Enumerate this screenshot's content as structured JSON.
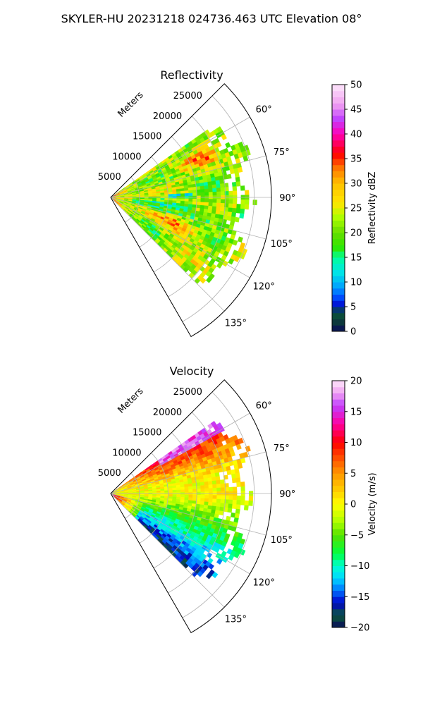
{
  "figure_title": "SKYLER-HU  20231218  024736.463 UTC Elevation 08°",
  "chart_data": [
    {
      "type": "heatmap",
      "title": "Reflectivity",
      "projection": "polar sector",
      "range_label": "Meters",
      "range_ticks": [
        "5000",
        "10000",
        "15000",
        "20000",
        "25000"
      ],
      "range_tick_values": [
        5000,
        10000,
        15000,
        20000,
        25000
      ],
      "range_max": 28000,
      "azimuth_min": 45,
      "azimuth_max": 150,
      "azimuth_ticks": [
        "60°",
        "75°",
        "90°",
        "105°",
        "120°",
        "135°"
      ],
      "azimuth_tick_values": [
        60,
        75,
        90,
        105,
        120,
        135
      ],
      "grid": true,
      "colorbar": {
        "label": "Reflectivity dBZ",
        "range": [
          0,
          50
        ],
        "ticks": [
          "0",
          "5",
          "10",
          "15",
          "20",
          "25",
          "30",
          "35",
          "40",
          "45",
          "50"
        ],
        "tick_values": [
          0,
          5,
          10,
          15,
          20,
          25,
          30,
          35,
          40,
          45,
          50
        ]
      },
      "colormap": [
        {
          "v": 0,
          "c": "#0a0a5a"
        },
        {
          "v": 2,
          "c": "#0d3b3b"
        },
        {
          "v": 4,
          "c": "#0a5a3a"
        },
        {
          "v": 5,
          "c": "#0000c8"
        },
        {
          "v": 7,
          "c": "#0050ff"
        },
        {
          "v": 9,
          "c": "#00a0ff"
        },
        {
          "v": 12,
          "c": "#00e6e6"
        },
        {
          "v": 15,
          "c": "#00ff9a"
        },
        {
          "v": 17,
          "c": "#2ee600"
        },
        {
          "v": 20,
          "c": "#66dd00"
        },
        {
          "v": 23,
          "c": "#aaff00"
        },
        {
          "v": 26,
          "c": "#ffe600"
        },
        {
          "v": 30,
          "c": "#ffc000"
        },
        {
          "v": 33,
          "c": "#ff7a00"
        },
        {
          "v": 36,
          "c": "#ff0000"
        },
        {
          "v": 40,
          "c": "#ff00b4"
        },
        {
          "v": 43,
          "c": "#c040ff"
        },
        {
          "v": 46,
          "c": "#f0a0f0"
        },
        {
          "v": 50,
          "c": "#fde6fb"
        }
      ]
    },
    {
      "type": "heatmap",
      "title": "Velocity",
      "projection": "polar sector",
      "range_label": "Meters",
      "range_ticks": [
        "5000",
        "10000",
        "15000",
        "20000",
        "25000"
      ],
      "range_tick_values": [
        5000,
        10000,
        15000,
        20000,
        25000
      ],
      "range_max": 28000,
      "azimuth_min": 45,
      "azimuth_max": 150,
      "azimuth_ticks": [
        "60°",
        "75°",
        "90°",
        "105°",
        "120°",
        "135°"
      ],
      "azimuth_tick_values": [
        60,
        75,
        90,
        105,
        120,
        135
      ],
      "grid": true,
      "colorbar": {
        "label": "Velocity (m/s)",
        "range": [
          -20,
          20
        ],
        "ticks": [
          "−20",
          "−15",
          "−10",
          "−5",
          "0",
          "5",
          "10",
          "15",
          "20"
        ],
        "tick_values": [
          -20,
          -15,
          -10,
          -5,
          0,
          5,
          10,
          15,
          20
        ]
      },
      "colormap": [
        {
          "v": -20,
          "c": "#0a0a5a"
        },
        {
          "v": -18,
          "c": "#0a5a3a"
        },
        {
          "v": -16,
          "c": "#0000c8"
        },
        {
          "v": -14,
          "c": "#0070ff"
        },
        {
          "v": -12,
          "c": "#00d8ff"
        },
        {
          "v": -10,
          "c": "#00ffd0"
        },
        {
          "v": -8,
          "c": "#00ff40"
        },
        {
          "v": -5,
          "c": "#55e000"
        },
        {
          "v": -3,
          "c": "#a8ff00"
        },
        {
          "v": 0,
          "c": "#ffff00"
        },
        {
          "v": 2,
          "c": "#ffd200"
        },
        {
          "v": 5,
          "c": "#ff9600"
        },
        {
          "v": 8,
          "c": "#ff4000"
        },
        {
          "v": 10,
          "c": "#ff0000"
        },
        {
          "v": 13,
          "c": "#ff00a0"
        },
        {
          "v": 16,
          "c": "#c040ff"
        },
        {
          "v": 18,
          "c": "#f0a0f0"
        },
        {
          "v": 20,
          "c": "#fde6fb"
        }
      ]
    }
  ]
}
